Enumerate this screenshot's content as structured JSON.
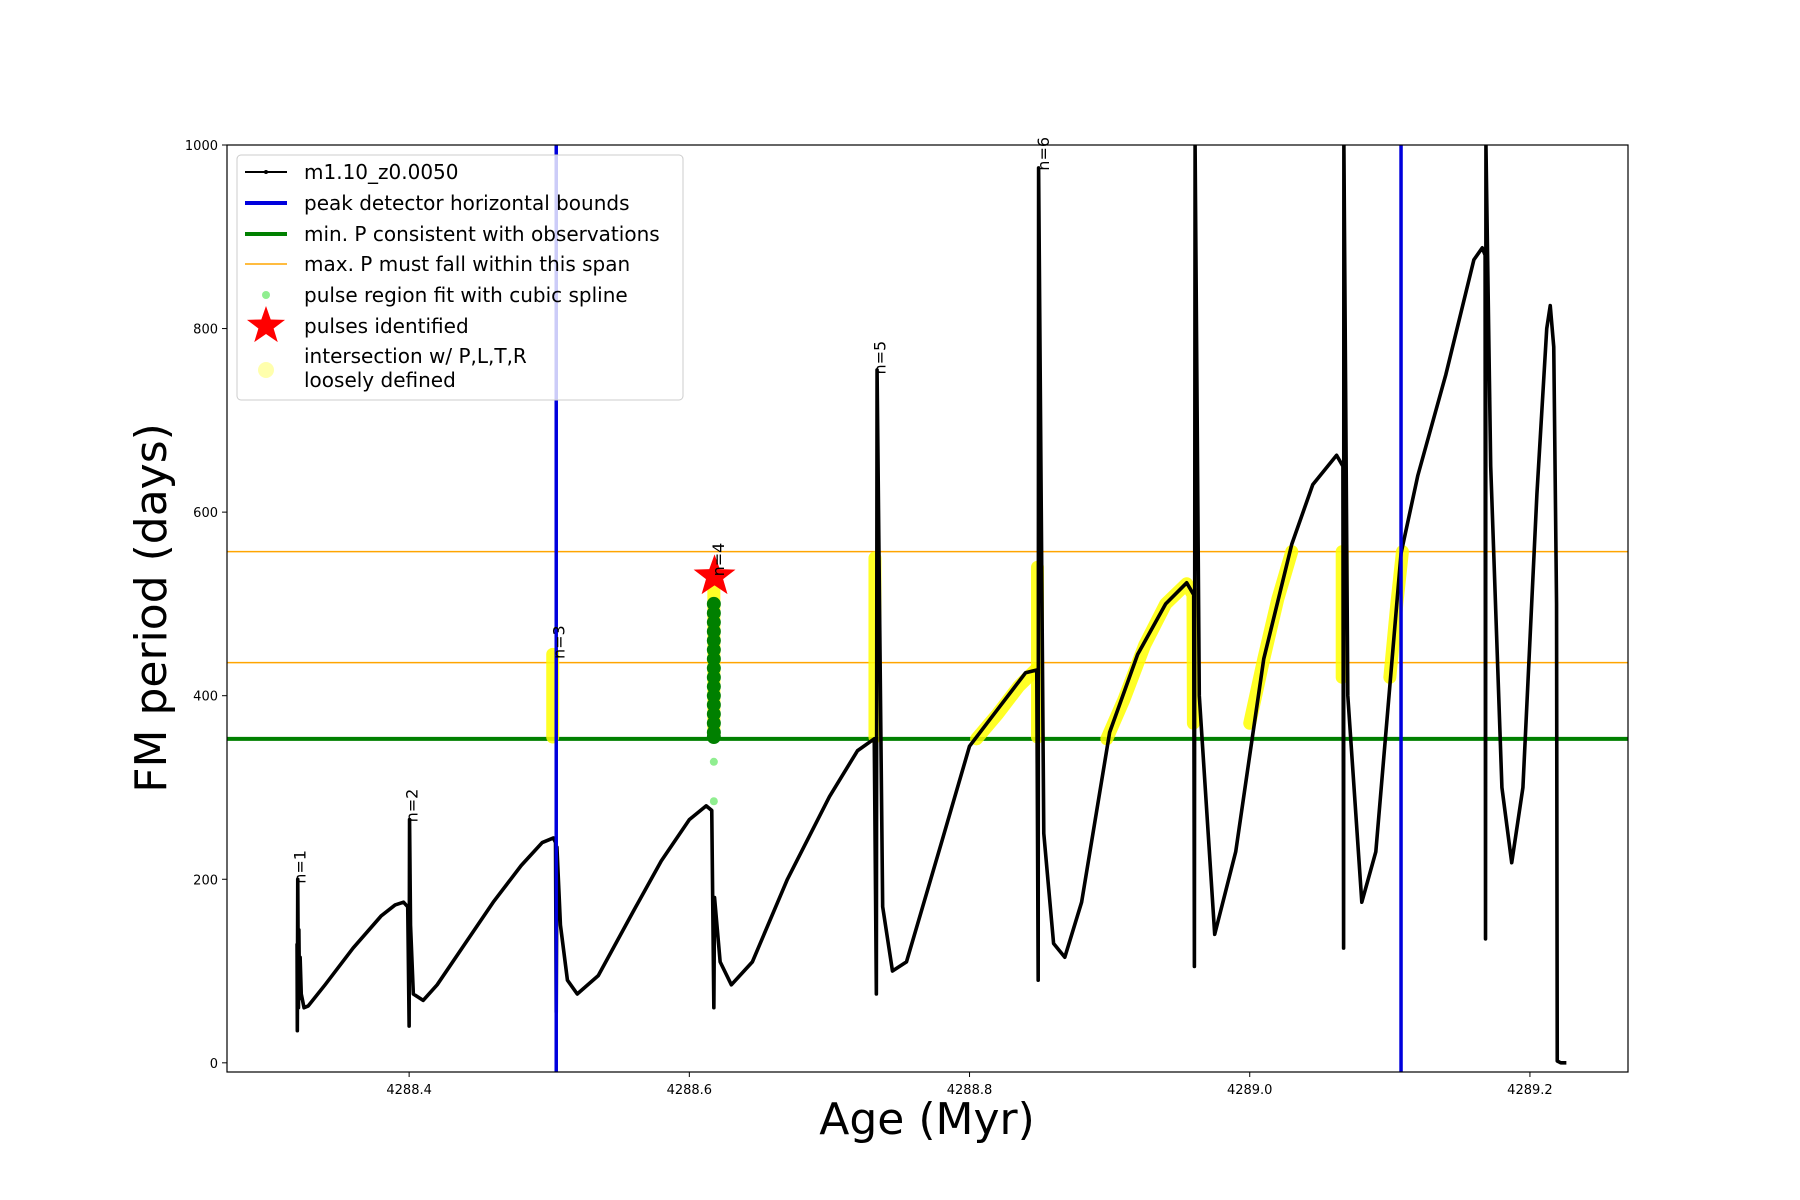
{
  "chart_data": {
    "type": "line",
    "xlabel": "Age (Myr)",
    "ylabel": "FM period (days)",
    "xlim": [
      4288.27,
      4289.27
    ],
    "ylim": [
      -10,
      1000
    ],
    "x_ticks": [
      4288.4,
      4288.6,
      4288.8,
      4289.0,
      4289.2
    ],
    "x_tick_labels": [
      "4288.4",
      "4288.6",
      "4288.8",
      "4289.0",
      "4289.2"
    ],
    "y_ticks": [
      0,
      200,
      400,
      600,
      800,
      1000
    ],
    "y_tick_labels": [
      "0",
      "200",
      "400",
      "600",
      "800",
      "1000"
    ],
    "grid": false,
    "legend_position": "top-left",
    "legend": [
      {
        "label": "m1.10_z0.0050",
        "kind": "line-marker",
        "color": "#000000"
      },
      {
        "label": "peak detector horizontal bounds",
        "kind": "thick-line",
        "color": "#0000dd"
      },
      {
        "label": "min. P consistent with observations",
        "kind": "thick-line",
        "color": "#008000"
      },
      {
        "label": "max. P must fall within this span",
        "kind": "thin-line",
        "color": "#ffa500"
      },
      {
        "label": "pulse region fit with cubic spline",
        "kind": "dot",
        "color": "#90ee90"
      },
      {
        "label": "pulses identified",
        "kind": "star",
        "color": "#ff0000"
      },
      {
        "label": "intersection w/ P,L,T,R",
        "label2": "loosely defined",
        "kind": "big-dot",
        "color": "#ffff99"
      }
    ],
    "vertical_lines": [
      {
        "x": 4288.505,
        "color": "#0000dd"
      },
      {
        "x": 4289.108,
        "color": "#0000dd"
      }
    ],
    "horizontal_lines": [
      {
        "y": 353,
        "color": "#008000",
        "width": 4
      },
      {
        "y": 436,
        "color": "#ffa500",
        "width": 1.5
      },
      {
        "y": 557,
        "color": "#ffa500",
        "width": 1.5
      }
    ],
    "series": [
      {
        "name": "m1.10_z0.0050",
        "color": "#000000",
        "points": [
          [
            4288.32,
            130
          ],
          [
            4288.3202,
            35
          ],
          [
            4288.3205,
            200
          ],
          [
            4288.321,
            60
          ],
          [
            4288.3213,
            145
          ],
          [
            4288.3218,
            70
          ],
          [
            4288.3222,
            115
          ],
          [
            4288.323,
            75
          ],
          [
            4288.325,
            60
          ],
          [
            4288.328,
            62
          ],
          [
            4288.34,
            85
          ],
          [
            4288.36,
            125
          ],
          [
            4288.38,
            160
          ],
          [
            4288.39,
            172
          ],
          [
            4288.396,
            175
          ],
          [
            4288.399,
            170
          ],
          [
            4288.4,
            40
          ],
          [
            4288.4003,
            265
          ],
          [
            4288.401,
            150
          ],
          [
            4288.403,
            75
          ],
          [
            4288.41,
            68
          ],
          [
            4288.42,
            85
          ],
          [
            4288.44,
            130
          ],
          [
            4288.46,
            175
          ],
          [
            4288.48,
            215
          ],
          [
            4288.495,
            240
          ],
          [
            4288.503,
            245
          ],
          [
            4288.5045,
            240
          ],
          [
            4288.505,
            55
          ],
          [
            4288.5055,
            235
          ],
          [
            4288.508,
            150
          ],
          [
            4288.513,
            90
          ],
          [
            4288.52,
            75
          ],
          [
            4288.535,
            95
          ],
          [
            4288.56,
            165
          ],
          [
            4288.58,
            220
          ],
          [
            4288.6,
            265
          ],
          [
            4288.612,
            280
          ],
          [
            4288.616,
            275
          ],
          [
            4288.6175,
            60
          ],
          [
            4288.618,
            180
          ],
          [
            4288.622,
            110
          ],
          [
            4288.63,
            85
          ],
          [
            4288.645,
            110
          ],
          [
            4288.67,
            200
          ],
          [
            4288.7,
            290
          ],
          [
            4288.72,
            340
          ],
          [
            4288.732,
            353
          ],
          [
            4288.7335,
            75
          ],
          [
            4288.734,
            755
          ],
          [
            4288.738,
            170
          ],
          [
            4288.745,
            100
          ],
          [
            4288.755,
            110
          ],
          [
            4288.78,
            240
          ],
          [
            4288.8,
            345
          ],
          [
            4288.82,
            385
          ],
          [
            4288.84,
            425
          ],
          [
            4288.848,
            428
          ],
          [
            4288.849,
            90
          ],
          [
            4288.8493,
            975
          ],
          [
            4288.853,
            250
          ],
          [
            4288.86,
            130
          ],
          [
            4288.868,
            115
          ],
          [
            4288.88,
            175
          ],
          [
            4288.9,
            360
          ],
          [
            4288.92,
            445
          ],
          [
            4288.94,
            500
          ],
          [
            4288.955,
            523
          ],
          [
            4288.96,
            510
          ],
          [
            4288.9605,
            105
          ],
          [
            4288.961,
            1000
          ],
          [
            4288.964,
            400
          ],
          [
            4288.975,
            140
          ],
          [
            4288.99,
            230
          ],
          [
            4289.01,
            440
          ],
          [
            4289.03,
            565
          ],
          [
            4289.045,
            630
          ],
          [
            4289.062,
            662
          ],
          [
            4289.0665,
            650
          ],
          [
            4289.067,
            125
          ],
          [
            4289.0672,
            1000
          ],
          [
            4289.07,
            400
          ],
          [
            4289.08,
            175
          ],
          [
            4289.09,
            230
          ],
          [
            4289.108,
            555
          ],
          [
            4289.12,
            640
          ],
          [
            4289.14,
            750
          ],
          [
            4289.16,
            875
          ],
          [
            4289.166,
            888
          ],
          [
            4289.168,
            880
          ],
          [
            4289.1683,
            135
          ],
          [
            4289.1686,
            1000
          ],
          [
            4289.172,
            650
          ],
          [
            4289.18,
            300
          ],
          [
            4289.187,
            218
          ],
          [
            4289.195,
            300
          ],
          [
            4289.205,
            620
          ],
          [
            4289.212,
            800
          ],
          [
            4289.2145,
            825
          ],
          [
            4289.217,
            780
          ],
          [
            4289.219,
            500
          ],
          [
            4289.2195,
            2
          ],
          [
            4289.222,
            0
          ],
          [
            4289.226,
            0
          ]
        ]
      }
    ],
    "spline_points": [
      [
        4288.6175,
        500
      ],
      [
        4288.6175,
        490
      ],
      [
        4288.6175,
        480
      ],
      [
        4288.6175,
        470
      ],
      [
        4288.6175,
        460
      ],
      [
        4288.6175,
        450
      ],
      [
        4288.6175,
        440
      ],
      [
        4288.6175,
        430
      ],
      [
        4288.6175,
        420
      ],
      [
        4288.6175,
        410
      ],
      [
        4288.6175,
        400
      ],
      [
        4288.6175,
        390
      ],
      [
        4288.6175,
        380
      ],
      [
        4288.6175,
        370
      ],
      [
        4288.6175,
        360
      ],
      [
        4288.6175,
        355
      ],
      [
        4288.6175,
        328
      ],
      [
        4288.6175,
        285
      ]
    ],
    "pulses_identified": [
      [
        4288.618,
        530
      ]
    ],
    "intersection_segments": [
      [
        [
          4288.5025,
          355
        ],
        [
          4288.5025,
          445
        ]
      ],
      [
        [
          4288.6175,
          355
        ],
        [
          4288.6175,
          530
        ]
      ],
      [
        [
          4288.7325,
          355
        ],
        [
          4288.7325,
          550
        ]
      ],
      [
        [
          4288.805,
          353
        ],
        [
          4288.82,
          380
        ],
        [
          4288.835,
          410
        ],
        [
          4288.847,
          428
        ]
      ],
      [
        [
          4288.8485,
          355
        ],
        [
          4288.8485,
          540
        ]
      ],
      [
        [
          4288.898,
          353
        ],
        [
          4288.91,
          395
        ],
        [
          4288.925,
          455
        ],
        [
          4288.94,
          500
        ],
        [
          4288.955,
          522
        ],
        [
          4288.9595,
          510
        ],
        [
          4288.9598,
          370
        ]
      ],
      [
        [
          4289.0,
          370
        ],
        [
          4289.01,
          440
        ],
        [
          4289.02,
          505
        ],
        [
          4289.03,
          557
        ]
      ],
      [
        [
          4289.066,
          420
        ],
        [
          4289.066,
          557
        ]
      ],
      [
        [
          4289.1,
          420
        ],
        [
          4289.105,
          500
        ],
        [
          4289.109,
          557
        ]
      ]
    ],
    "pulse_labels": [
      {
        "text": "n=1",
        "x": 4288.3225,
        "y": 195
      },
      {
        "text": "n=2",
        "x": 4288.4025,
        "y": 262
      },
      {
        "text": "n=3",
        "x": 4288.5075,
        "y": 440
      },
      {
        "text": "n=4",
        "x": 4288.621,
        "y": 530
      },
      {
        "text": "n=5",
        "x": 4288.7365,
        "y": 750
      },
      {
        "text": "n=6",
        "x": 4288.853,
        "y": 972
      }
    ]
  }
}
